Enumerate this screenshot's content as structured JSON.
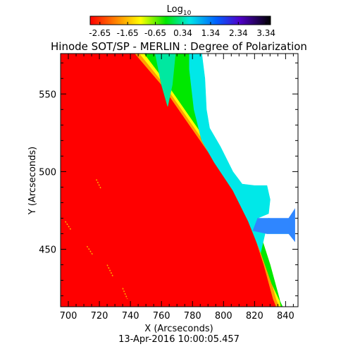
{
  "chart_data": {
    "type": "heatmap",
    "title": "Hinode SOT/SP - MERLIN : Degree of Polarization",
    "xlabel": "X (Arcseconds)",
    "ylabel": "Y (Arcseconds)",
    "timestamp": "13-Apr-2016 10:00:05.457",
    "xlim": [
      695,
      848
    ],
    "ylim": [
      413,
      576
    ],
    "xticks": [
      700,
      720,
      740,
      760,
      780,
      800,
      820,
      840
    ],
    "yticks": [
      450,
      500,
      550
    ],
    "colorbar": {
      "label_base": "Log",
      "label_sub": "10",
      "ticks": [
        "-2.65",
        "-1.65",
        "-0.65",
        "0.34",
        "1.34",
        "2.34",
        "3.34"
      ],
      "range": [
        -3.0,
        3.5
      ]
    },
    "regions": [
      {
        "value": -2.8,
        "color": "#ff0000",
        "polygon": [
          [
            695,
            576
          ],
          [
            743,
            576
          ],
          [
            760,
            556
          ],
          [
            776,
            533
          ],
          [
            792,
            510
          ],
          [
            806,
            490
          ],
          [
            818,
            465
          ],
          [
            826,
            440
          ],
          [
            832,
            418
          ],
          [
            834,
            413
          ],
          [
            695,
            413
          ]
        ]
      },
      {
        "value": -1.5,
        "color": "#ffa000",
        "polygon": [
          [
            743,
            576
          ],
          [
            760,
            556
          ],
          [
            776,
            533
          ],
          [
            792,
            510
          ],
          [
            806,
            490
          ],
          [
            818,
            465
          ],
          [
            826,
            440
          ],
          [
            832,
            418
          ],
          [
            834,
            413
          ],
          [
            836,
            413
          ],
          [
            834,
            418
          ],
          [
            828,
            440
          ],
          [
            820,
            465
          ],
          [
            808,
            490
          ],
          [
            794,
            510
          ],
          [
            778,
            533
          ],
          [
            762,
            556
          ],
          [
            746,
            576
          ]
        ]
      },
      {
        "value": -0.9,
        "color": "#ffff00",
        "polygon": [
          [
            746,
            576
          ],
          [
            762,
            556
          ],
          [
            778,
            533
          ],
          [
            794,
            510
          ],
          [
            808,
            490
          ],
          [
            820,
            465
          ],
          [
            828,
            440
          ],
          [
            834,
            418
          ],
          [
            836,
            413
          ],
          [
            837,
            413
          ],
          [
            836,
            418
          ],
          [
            830,
            440
          ],
          [
            822,
            465
          ],
          [
            810,
            490
          ],
          [
            796,
            510
          ],
          [
            780,
            533
          ],
          [
            764,
            556
          ],
          [
            749,
            576
          ]
        ]
      },
      {
        "value": -0.3,
        "color": "#00e800",
        "polygon": [
          [
            749,
            576
          ],
          [
            756,
            576
          ],
          [
            760,
            556
          ],
          [
            764,
            542
          ],
          [
            767,
            556
          ],
          [
            769,
            576
          ],
          [
            778,
            576
          ],
          [
            778,
            566
          ],
          [
            781,
            540
          ],
          [
            786,
            520
          ],
          [
            794,
            506
          ],
          [
            806,
            488
          ],
          [
            816,
            468
          ],
          [
            824,
            448
          ],
          [
            831,
            428
          ],
          [
            838,
            413
          ],
          [
            837,
            413
          ],
          [
            836,
            418
          ],
          [
            830,
            440
          ],
          [
            822,
            465
          ],
          [
            810,
            490
          ],
          [
            796,
            510
          ],
          [
            780,
            533
          ],
          [
            764,
            556
          ]
        ]
      },
      {
        "value": 0.4,
        "color": "#00e8e8",
        "polygon": [
          [
            778,
            576
          ],
          [
            786,
            576
          ],
          [
            788,
            560
          ],
          [
            789,
            540
          ],
          [
            791,
            528
          ],
          [
            798,
            516
          ],
          [
            806,
            500
          ],
          [
            812,
            492
          ],
          [
            820,
            491
          ],
          [
            828,
            491
          ],
          [
            830,
            482
          ],
          [
            829,
            473
          ],
          [
            822,
            470
          ],
          [
            819,
            462
          ],
          [
            828,
            460
          ],
          [
            842,
            460
          ],
          [
            843,
            468
          ],
          [
            829,
            470
          ],
          [
            824,
            448
          ],
          [
            816,
            468
          ],
          [
            806,
            488
          ],
          [
            794,
            506
          ],
          [
            786,
            520
          ],
          [
            781,
            540
          ],
          [
            778,
            566
          ]
        ]
      },
      {
        "value": 1.0,
        "color": "#2f86ff",
        "polygon": [
          [
            829,
            470
          ],
          [
            842,
            470
          ],
          [
            846,
            476
          ],
          [
            846,
            455
          ],
          [
            842,
            460
          ],
          [
            828,
            460
          ],
          [
            819,
            462
          ],
          [
            822,
            470
          ]
        ]
      },
      {
        "value": 0.2,
        "color": "#00e8a0",
        "polygon": [
          [
            756,
            576
          ],
          [
            769,
            576
          ],
          [
            767,
            556
          ],
          [
            764,
            542
          ],
          [
            760,
            556
          ]
        ]
      }
    ]
  }
}
